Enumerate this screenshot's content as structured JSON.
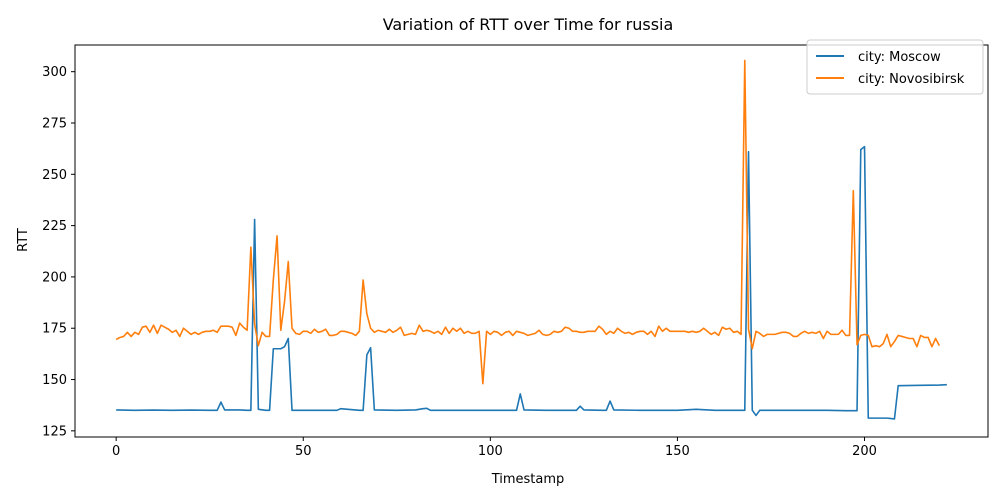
{
  "chart_data": {
    "type": "line",
    "title": "Variation of RTT over Time for russia",
    "xlabel": "Timestamp",
    "ylabel": "RTT",
    "xlim": [
      -11,
      233
    ],
    "ylim": [
      122,
      313
    ],
    "xticks": [
      0,
      50,
      100,
      150,
      200
    ],
    "yticks": [
      125,
      150,
      175,
      200,
      225,
      250,
      275,
      300
    ],
    "grid": false,
    "legend_position": "top-right",
    "series": [
      {
        "name": "city: Moscow",
        "color": "#1f77b4",
        "points": [
          [
            0,
            135.2
          ],
          [
            5,
            135.0
          ],
          [
            10,
            135.1
          ],
          [
            15,
            135.0
          ],
          [
            20,
            135.1
          ],
          [
            25,
            135.0
          ],
          [
            27,
            135.0
          ],
          [
            28,
            139.0
          ],
          [
            29,
            135.2
          ],
          [
            33,
            135.2
          ],
          [
            35,
            135.0
          ],
          [
            36,
            135.0
          ],
          [
            37,
            228.0
          ],
          [
            38,
            135.5
          ],
          [
            40,
            135.0
          ],
          [
            41,
            135.0
          ],
          [
            42,
            165.0
          ],
          [
            44,
            165.0
          ],
          [
            45,
            166.0
          ],
          [
            46,
            170.0
          ],
          [
            47,
            135.0
          ],
          [
            55,
            135.0
          ],
          [
            59,
            135.0
          ],
          [
            60,
            135.8
          ],
          [
            65,
            135.0
          ],
          [
            66,
            135.0
          ],
          [
            67,
            162.0
          ],
          [
            68,
            165.5
          ],
          [
            69,
            135.2
          ],
          [
            75,
            135.0
          ],
          [
            80,
            135.2
          ],
          [
            82,
            135.8
          ],
          [
            83,
            136.0
          ],
          [
            84,
            135.0
          ],
          [
            90,
            135.0
          ],
          [
            100,
            135.0
          ],
          [
            106,
            135.0
          ],
          [
            107,
            135.0
          ],
          [
            108,
            143.0
          ],
          [
            109,
            135.2
          ],
          [
            115,
            135.0
          ],
          [
            120,
            135.0
          ],
          [
            122,
            135.0
          ],
          [
            123,
            135.0
          ],
          [
            124,
            137.0
          ],
          [
            125,
            135.2
          ],
          [
            130,
            135.0
          ],
          [
            131,
            135.0
          ],
          [
            132,
            139.5
          ],
          [
            133,
            135.2
          ],
          [
            140,
            135.0
          ],
          [
            150,
            135.0
          ],
          [
            155,
            135.5
          ],
          [
            160,
            135.0
          ],
          [
            165,
            135.0
          ],
          [
            167,
            135.0
          ],
          [
            168,
            135.0
          ],
          [
            169,
            261.0
          ],
          [
            170,
            135.0
          ],
          [
            171,
            132.5
          ],
          [
            172,
            135.0
          ],
          [
            176,
            135.0
          ],
          [
            185,
            135.0
          ],
          [
            190,
            135.0
          ],
          [
            195,
            134.8
          ],
          [
            198,
            134.8
          ],
          [
            199,
            262.0
          ],
          [
            200,
            263.5
          ],
          [
            201,
            131.2
          ],
          [
            206,
            131.2
          ],
          [
            208,
            130.8
          ],
          [
            209,
            147.0
          ],
          [
            215,
            147.2
          ],
          [
            220,
            147.3
          ],
          [
            222,
            147.5
          ]
        ]
      },
      {
        "name": "city: Novosibirsk",
        "color": "#ff7f0e",
        "points": [
          [
            0,
            169.5
          ],
          [
            1,
            170.5
          ],
          [
            2,
            171.0
          ],
          [
            3,
            173.0
          ],
          [
            4,
            171.0
          ],
          [
            5,
            173.0
          ],
          [
            6,
            172.0
          ],
          [
            7,
            175.5
          ],
          [
            8,
            176.0
          ],
          [
            9,
            173.0
          ],
          [
            10,
            176.5
          ],
          [
            11,
            172.5
          ],
          [
            12,
            176.5
          ],
          [
            13,
            175.5
          ],
          [
            14,
            174.5
          ],
          [
            15,
            173.0
          ],
          [
            16,
            174.0
          ],
          [
            17,
            171.0
          ],
          [
            18,
            175.0
          ],
          [
            19,
            173.5
          ],
          [
            20,
            172.0
          ],
          [
            21,
            173.0
          ],
          [
            22,
            172.0
          ],
          [
            23,
            173.0
          ],
          [
            24,
            173.5
          ],
          [
            25,
            173.5
          ],
          [
            26,
            174.0
          ],
          [
            27,
            173.0
          ],
          [
            28,
            176.0
          ],
          [
            29,
            176.0
          ],
          [
            30,
            176.0
          ],
          [
            31,
            175.5
          ],
          [
            32,
            171.5
          ],
          [
            33,
            177.5
          ],
          [
            34,
            175.5
          ],
          [
            35,
            174.0
          ],
          [
            36,
            214.5
          ],
          [
            37,
            177.0
          ],
          [
            38,
            166.5
          ],
          [
            39,
            173.0
          ],
          [
            40,
            171.0
          ],
          [
            41,
            171.0
          ],
          [
            42,
            198.5
          ],
          [
            43,
            220.0
          ],
          [
            44,
            174.0
          ],
          [
            45,
            188.0
          ],
          [
            46,
            207.5
          ],
          [
            47,
            175.0
          ],
          [
            48,
            172.5
          ],
          [
            49,
            172.0
          ],
          [
            50,
            173.5
          ],
          [
            51,
            173.5
          ],
          [
            52,
            172.5
          ],
          [
            53,
            174.5
          ],
          [
            54,
            173.0
          ],
          [
            55,
            173.5
          ],
          [
            56,
            174.5
          ],
          [
            57,
            171.5
          ],
          [
            58,
            171.5
          ],
          [
            59,
            172.0
          ],
          [
            60,
            173.5
          ],
          [
            61,
            173.5
          ],
          [
            62,
            173.0
          ],
          [
            63,
            172.5
          ],
          [
            64,
            171.5
          ],
          [
            65,
            173.5
          ],
          [
            66,
            198.5
          ],
          [
            67,
            182.0
          ],
          [
            68,
            175.0
          ],
          [
            69,
            173.0
          ],
          [
            70,
            174.0
          ],
          [
            71,
            173.5
          ],
          [
            72,
            173.0
          ],
          [
            73,
            174.5
          ],
          [
            74,
            173.0
          ],
          [
            75,
            174.0
          ],
          [
            76,
            175.5
          ],
          [
            77,
            171.5
          ],
          [
            78,
            172.0
          ],
          [
            79,
            172.5
          ],
          [
            80,
            172.0
          ],
          [
            81,
            176.5
          ],
          [
            82,
            173.5
          ],
          [
            83,
            174.0
          ],
          [
            84,
            173.5
          ],
          [
            85,
            172.5
          ],
          [
            86,
            173.5
          ],
          [
            87,
            172.0
          ],
          [
            88,
            175.5
          ],
          [
            89,
            172.5
          ],
          [
            90,
            175.0
          ],
          [
            91,
            173.5
          ],
          [
            92,
            175.0
          ],
          [
            93,
            172.5
          ],
          [
            94,
            173.5
          ],
          [
            95,
            172.5
          ],
          [
            96,
            172.5
          ],
          [
            97,
            173.5
          ],
          [
            98,
            148.0
          ],
          [
            99,
            173.5
          ],
          [
            100,
            172.0
          ],
          [
            101,
            173.5
          ],
          [
            102,
            173.0
          ],
          [
            103,
            171.5
          ],
          [
            104,
            173.0
          ],
          [
            105,
            173.5
          ],
          [
            106,
            171.5
          ],
          [
            107,
            173.5
          ],
          [
            108,
            173.0
          ],
          [
            109,
            172.5
          ],
          [
            110,
            171.5
          ],
          [
            111,
            172.0
          ],
          [
            112,
            172.5
          ],
          [
            113,
            174.0
          ],
          [
            114,
            172.0
          ],
          [
            115,
            171.5
          ],
          [
            116,
            172.0
          ],
          [
            117,
            173.5
          ],
          [
            118,
            173.0
          ],
          [
            119,
            173.5
          ],
          [
            120,
            175.5
          ],
          [
            121,
            175.0
          ],
          [
            122,
            173.5
          ],
          [
            123,
            173.5
          ],
          [
            124,
            173.0
          ],
          [
            125,
            173.0
          ],
          [
            126,
            173.5
          ],
          [
            127,
            173.5
          ],
          [
            128,
            173.5
          ],
          [
            129,
            176.0
          ],
          [
            130,
            174.5
          ],
          [
            131,
            172.0
          ],
          [
            132,
            173.5
          ],
          [
            133,
            172.5
          ],
          [
            134,
            175.0
          ],
          [
            135,
            173.5
          ],
          [
            136,
            172.5
          ],
          [
            137,
            173.0
          ],
          [
            138,
            172.0
          ],
          [
            139,
            173.0
          ],
          [
            140,
            173.5
          ],
          [
            141,
            173.5
          ],
          [
            142,
            172.0
          ],
          [
            143,
            173.5
          ],
          [
            144,
            171.0
          ],
          [
            145,
            176.0
          ],
          [
            146,
            173.5
          ],
          [
            147,
            175.0
          ],
          [
            148,
            173.5
          ],
          [
            149,
            173.5
          ],
          [
            150,
            173.5
          ],
          [
            151,
            173.5
          ],
          [
            152,
            173.5
          ],
          [
            153,
            173.0
          ],
          [
            154,
            173.5
          ],
          [
            155,
            173.0
          ],
          [
            156,
            173.5
          ],
          [
            157,
            175.0
          ],
          [
            158,
            173.5
          ],
          [
            159,
            172.0
          ],
          [
            160,
            173.0
          ],
          [
            161,
            171.5
          ],
          [
            162,
            175.5
          ],
          [
            163,
            174.5
          ],
          [
            164,
            175.0
          ],
          [
            165,
            173.0
          ],
          [
            166,
            173.5
          ],
          [
            167,
            172.0
          ],
          [
            168,
            305.5
          ],
          [
            169,
            174.5
          ],
          [
            170,
            165.0
          ],
          [
            171,
            173.5
          ],
          [
            172,
            172.5
          ],
          [
            173,
            171.0
          ],
          [
            174,
            172.0
          ],
          [
            175,
            172.0
          ],
          [
            176,
            172.0
          ],
          [
            177,
            172.5
          ],
          [
            178,
            173.0
          ],
          [
            179,
            173.0
          ],
          [
            180,
            172.5
          ],
          [
            181,
            171.0
          ],
          [
            182,
            171.0
          ],
          [
            183,
            172.5
          ],
          [
            184,
            173.5
          ],
          [
            185,
            172.5
          ],
          [
            186,
            173.0
          ],
          [
            187,
            172.5
          ],
          [
            188,
            173.5
          ],
          [
            189,
            170.0
          ],
          [
            190,
            173.5
          ],
          [
            191,
            172.0
          ],
          [
            192,
            172.0
          ],
          [
            193,
            172.0
          ],
          [
            194,
            174.0
          ],
          [
            195,
            171.5
          ],
          [
            196,
            171.5
          ],
          [
            197,
            242.0
          ],
          [
            198,
            167.0
          ],
          [
            199,
            171.5
          ],
          [
            200,
            172.0
          ],
          [
            201,
            171.5
          ],
          [
            202,
            166.0
          ],
          [
            203,
            166.5
          ],
          [
            204,
            166.0
          ],
          [
            205,
            167.5
          ],
          [
            206,
            172.0
          ],
          [
            207,
            166.0
          ],
          [
            208,
            168.5
          ],
          [
            209,
            171.5
          ],
          [
            210,
            171.0
          ],
          [
            211,
            170.5
          ],
          [
            212,
            170.0
          ],
          [
            213,
            170.0
          ],
          [
            214,
            166.0
          ],
          [
            215,
            171.5
          ],
          [
            216,
            170.5
          ],
          [
            217,
            170.5
          ],
          [
            218,
            166.0
          ],
          [
            219,
            170.0
          ],
          [
            220,
            166.5
          ]
        ]
      }
    ]
  }
}
